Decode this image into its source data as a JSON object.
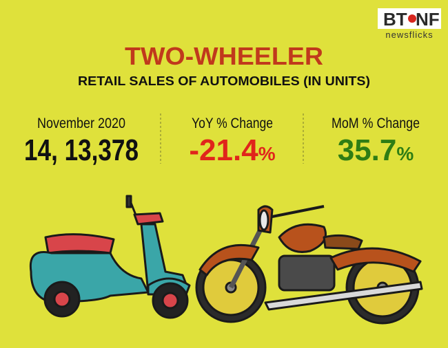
{
  "logo": {
    "left": "BT",
    "right": "NF",
    "tagline": "newsflicks"
  },
  "header": {
    "title": "TWO-WHEELER",
    "subtitle": "RETAIL SALES OF AUTOMOBILES (IN UNITS)"
  },
  "stats": [
    {
      "label": "November 2020",
      "value": "14, 13,378"
    },
    {
      "label": "YoY % Change",
      "value": "-21.4",
      "unit": "%"
    },
    {
      "label": "MoM % Change",
      "value": "35.7",
      "unit": "%"
    }
  ]
}
